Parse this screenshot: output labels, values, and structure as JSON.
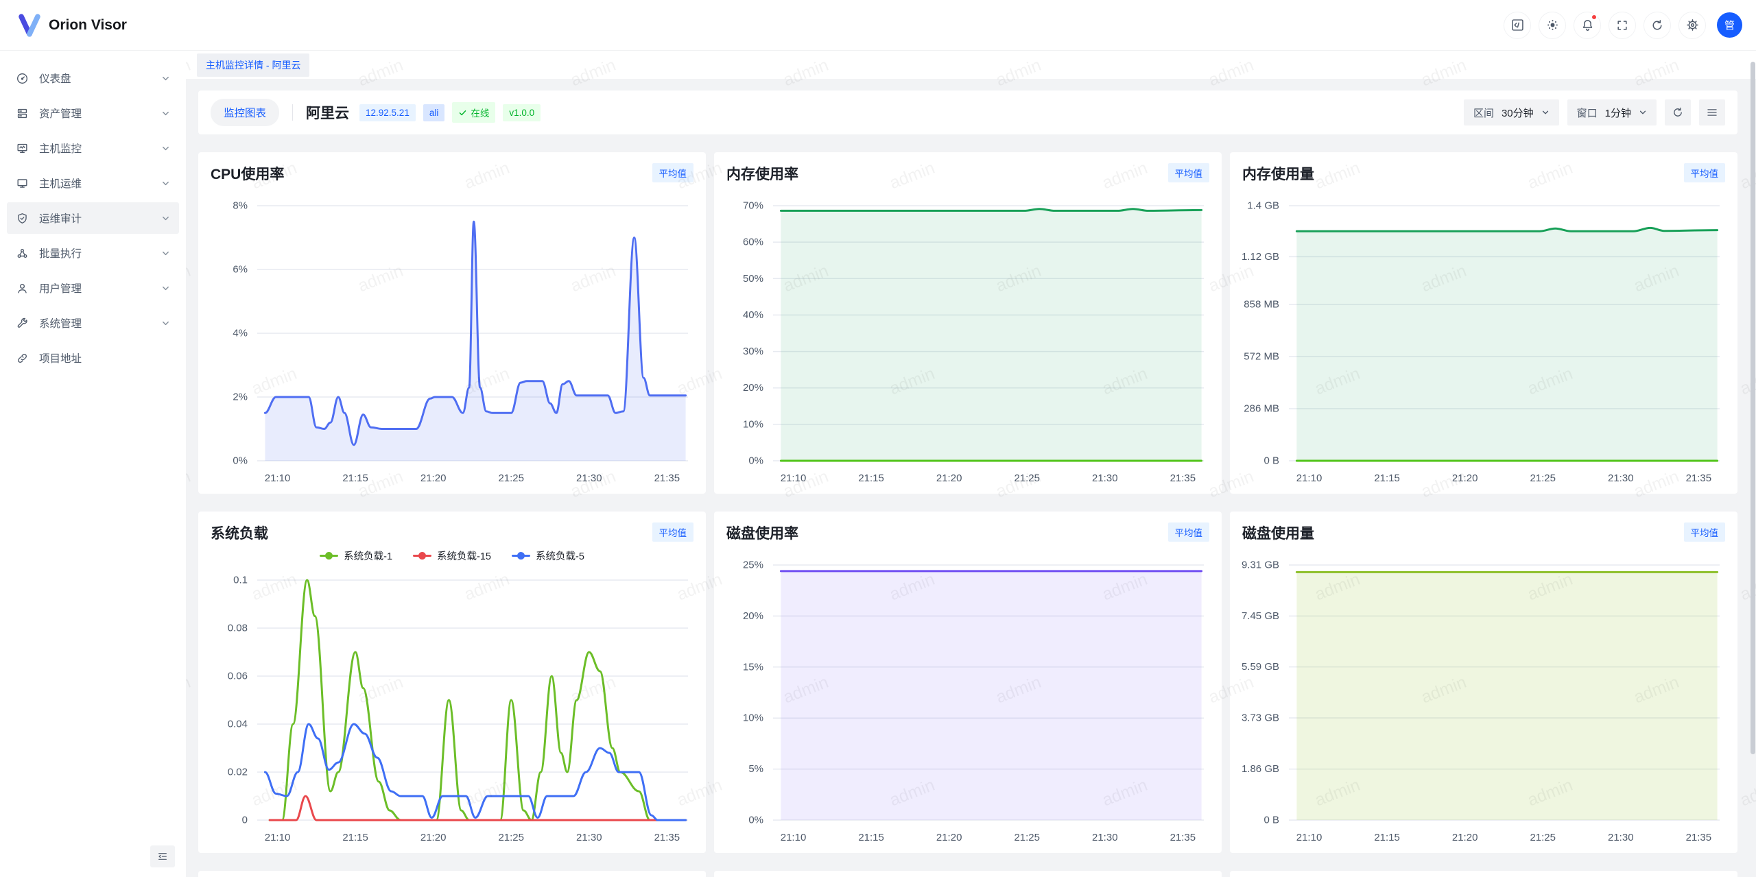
{
  "topbar": {
    "brand": "Orion Visor",
    "avatar": "管",
    "icons": [
      "code-icon",
      "theme-icon",
      "bell-icon",
      "fullscreen-icon",
      "reload-icon",
      "gear-icon"
    ],
    "accent_color": "#165dff",
    "notification_dot_color": "#f53f3f"
  },
  "sidebar": {
    "items": [
      {
        "label": "仪表盘",
        "icon": "dashboard-icon",
        "has_children": true,
        "active": false
      },
      {
        "label": "资产管理",
        "icon": "assets-icon",
        "has_children": true,
        "active": false
      },
      {
        "label": "主机监控",
        "icon": "host-monitor-icon",
        "has_children": true,
        "active": false
      },
      {
        "label": "主机运维",
        "icon": "host-ops-icon",
        "has_children": true,
        "active": false
      },
      {
        "label": "运维审计",
        "icon": "shield-check-icon",
        "has_children": true,
        "active": true
      },
      {
        "label": "批量执行",
        "icon": "batch-icon",
        "has_children": true,
        "active": false
      },
      {
        "label": "用户管理",
        "icon": "user-icon",
        "has_children": true,
        "active": false
      },
      {
        "label": "系统管理",
        "icon": "wrench-icon",
        "has_children": true,
        "active": false
      },
      {
        "label": "项目地址",
        "icon": "link-icon",
        "has_children": false,
        "active": false
      }
    ]
  },
  "tabs": {
    "active": "主机监控详情 - 阿里云"
  },
  "toolbar": {
    "view": "监控图表",
    "host": "阿里云",
    "ip": "12.92.5.21",
    "env": "ali",
    "status": "在线",
    "version": "v1.0.0",
    "range_label": "区间",
    "range_value": "30分钟",
    "window_label": "窗口",
    "window_value": "1分钟"
  },
  "watermark": "admin",
  "chart_data": [
    {
      "id": "cpu-usage",
      "type": "area",
      "title": "CPU使用率",
      "badge": "平均值",
      "x_domain": [
        8.7,
        36.35
      ],
      "x_ticks": [
        {
          "v": 10,
          "label": "21:10"
        },
        {
          "v": 15,
          "label": "21:15"
        },
        {
          "v": 20,
          "label": "21:20"
        },
        {
          "v": 25,
          "label": "21:25"
        },
        {
          "v": 30,
          "label": "21:30"
        },
        {
          "v": 35,
          "label": "21:35"
        }
      ],
      "y_max": 8,
      "y_ticks": [
        {
          "v": 0,
          "label": "0%"
        },
        {
          "v": 2,
          "label": "2%"
        },
        {
          "v": 4,
          "label": "4%"
        },
        {
          "v": 6,
          "label": "6%"
        },
        {
          "v": 8,
          "label": "8%"
        }
      ],
      "series": [
        {
          "color": "#4f6ef2",
          "fill": "rgba(79,110,242,0.13)",
          "points": [
            [
              9.2,
              1.5
            ],
            [
              9.9,
              2
            ],
            [
              12.0,
              2
            ],
            [
              12.5,
              1.05
            ],
            [
              13.0,
              1.0
            ],
            [
              13.4,
              1.2
            ],
            [
              13.9,
              2.0
            ],
            [
              14.3,
              1.5
            ],
            [
              14.9,
              0.5
            ],
            [
              15.5,
              1.45
            ],
            [
              16.0,
              1.05
            ],
            [
              16.7,
              1.0
            ],
            [
              18.9,
              1.0
            ],
            [
              19.8,
              1.95
            ],
            [
              20.1,
              2.0
            ],
            [
              21.2,
              2.0
            ],
            [
              21.9,
              1.5
            ],
            [
              22.3,
              2.3
            ],
            [
              22.6,
              7.5
            ],
            [
              23.0,
              2.3
            ],
            [
              23.4,
              1.55
            ],
            [
              23.8,
              1.5
            ],
            [
              25.0,
              1.5
            ],
            [
              25.6,
              2.45
            ],
            [
              26.0,
              2.5
            ],
            [
              27.0,
              2.5
            ],
            [
              27.5,
              1.8
            ],
            [
              27.9,
              1.5
            ],
            [
              28.3,
              2.4
            ],
            [
              28.7,
              2.5
            ],
            [
              29.2,
              2.05
            ],
            [
              31.2,
              2.05
            ],
            [
              31.7,
              1.5
            ],
            [
              32.2,
              1.55
            ],
            [
              32.9,
              7.0
            ],
            [
              33.5,
              2.6
            ],
            [
              33.9,
              2.05
            ],
            [
              36.2,
              2.05
            ]
          ]
        }
      ]
    },
    {
      "id": "memory-usage-percent",
      "type": "area",
      "title": "内存使用率",
      "badge": "平均值",
      "x_domain": [
        8.7,
        36.35
      ],
      "x_ticks": [
        {
          "v": 10,
          "label": "21:10"
        },
        {
          "v": 15,
          "label": "21:15"
        },
        {
          "v": 20,
          "label": "21:20"
        },
        {
          "v": 25,
          "label": "21:25"
        },
        {
          "v": 30,
          "label": "21:30"
        },
        {
          "v": 35,
          "label": "21:35"
        }
      ],
      "y_max": 70,
      "y_ticks": [
        {
          "v": 0,
          "label": "0%"
        },
        {
          "v": 10,
          "label": "10%"
        },
        {
          "v": 20,
          "label": "20%"
        },
        {
          "v": 30,
          "label": "30%"
        },
        {
          "v": 40,
          "label": "40%"
        },
        {
          "v": 50,
          "label": "50%"
        },
        {
          "v": 60,
          "label": "60%"
        },
        {
          "v": 70,
          "label": "70%"
        }
      ],
      "series": [
        {
          "color": "#18a058",
          "fill": "rgba(24,160,88,0.10)",
          "points": [
            [
              9.2,
              68.6
            ],
            [
              24.8,
              68.6
            ],
            [
              25.8,
              69.1
            ],
            [
              26.8,
              68.6
            ],
            [
              30.8,
              68.6
            ],
            [
              31.8,
              69.1
            ],
            [
              32.8,
              68.6
            ],
            [
              36.2,
              68.8
            ]
          ]
        },
        {
          "color": "#52c41a",
          "points": [
            [
              9.2,
              0
            ],
            [
              36.2,
              0
            ]
          ]
        }
      ]
    },
    {
      "id": "memory-usage-amount",
      "type": "area",
      "title": "内存使用量",
      "badge": "平均值",
      "x_domain": [
        8.7,
        36.35
      ],
      "x_ticks": [
        {
          "v": 10,
          "label": "21:10"
        },
        {
          "v": 15,
          "label": "21:15"
        },
        {
          "v": 20,
          "label": "21:20"
        },
        {
          "v": 25,
          "label": "21:25"
        },
        {
          "v": 30,
          "label": "21:30"
        },
        {
          "v": 35,
          "label": "21:35"
        }
      ],
      "y_max": 1.4,
      "y_ticks": [
        {
          "v": 0,
          "label": "0 B"
        },
        {
          "v": 0.286,
          "label": "286 MB"
        },
        {
          "v": 0.572,
          "label": "572 MB"
        },
        {
          "v": 0.858,
          "label": "858 MB"
        },
        {
          "v": 1.12,
          "label": "1.12 GB"
        },
        {
          "v": 1.4,
          "label": "1.4 GB"
        }
      ],
      "series": [
        {
          "color": "#18a058",
          "fill": "rgba(24,160,88,0.10)",
          "points": [
            [
              9.2,
              1.26
            ],
            [
              24.8,
              1.26
            ],
            [
              25.8,
              1.275
            ],
            [
              26.8,
              1.26
            ],
            [
              30.8,
              1.26
            ],
            [
              31.9,
              1.278
            ],
            [
              32.8,
              1.262
            ],
            [
              36.2,
              1.266
            ]
          ]
        },
        {
          "color": "#52c41a",
          "points": [
            [
              9.2,
              0
            ],
            [
              36.2,
              0
            ]
          ]
        }
      ]
    },
    {
      "id": "system-load",
      "type": "line",
      "title": "系统负载",
      "badge": "平均值",
      "x_domain": [
        8.7,
        36.35
      ],
      "x_ticks": [
        {
          "v": 10,
          "label": "21:10"
        },
        {
          "v": 15,
          "label": "21:15"
        },
        {
          "v": 20,
          "label": "21:20"
        },
        {
          "v": 25,
          "label": "21:25"
        },
        {
          "v": 30,
          "label": "21:30"
        },
        {
          "v": 35,
          "label": "21:35"
        }
      ],
      "y_max": 0.1,
      "y_ticks": [
        {
          "v": 0,
          "label": "0"
        },
        {
          "v": 0.02,
          "label": "0.02"
        },
        {
          "v": 0.04,
          "label": "0.04"
        },
        {
          "v": 0.06,
          "label": "0.06"
        },
        {
          "v": 0.08,
          "label": "0.08"
        },
        {
          "v": 0.1,
          "label": "0.1"
        }
      ],
      "legend": [
        {
          "name": "系统负载-1",
          "color": "#6cbe28"
        },
        {
          "name": "系统负载-15",
          "color": "#e9484c"
        },
        {
          "name": "系统负载-5",
          "color": "#3f6ff5"
        }
      ],
      "series": [
        {
          "name": "系统负载-1",
          "color": "#6cbe28",
          "points": [
            [
              9.5,
              0
            ],
            [
              10.3,
              0
            ],
            [
              11.0,
              0.04
            ],
            [
              11.9,
              0.1
            ],
            [
              12.4,
              0.085
            ],
            [
              13.4,
              0.012
            ],
            [
              13.9,
              0.02
            ],
            [
              15.0,
              0.07
            ],
            [
              15.5,
              0.055
            ],
            [
              16.5,
              0.016
            ],
            [
              17.2,
              0.004
            ],
            [
              17.9,
              0
            ],
            [
              20.2,
              0
            ],
            [
              21.0,
              0.05
            ],
            [
              21.8,
              0.004
            ],
            [
              22.3,
              0
            ],
            [
              24.3,
              0
            ],
            [
              25.0,
              0.05
            ],
            [
              25.8,
              0.004
            ],
            [
              26.3,
              0
            ],
            [
              26.9,
              0.02
            ],
            [
              27.6,
              0.06
            ],
            [
              28.2,
              0.028
            ],
            [
              28.6,
              0.02
            ],
            [
              29.2,
              0.05
            ],
            [
              30.0,
              0.07
            ],
            [
              30.7,
              0.062
            ],
            [
              31.5,
              0.03
            ],
            [
              32.0,
              0.02
            ],
            [
              33.2,
              0.012
            ],
            [
              33.9,
              0
            ],
            [
              36.2,
              0
            ]
          ]
        },
        {
          "name": "系统负载-15",
          "color": "#e9484c",
          "points": [
            [
              9.5,
              0
            ],
            [
              11.2,
              0
            ],
            [
              11.8,
              0.01
            ],
            [
              12.5,
              0
            ],
            [
              36.2,
              0
            ]
          ]
        },
        {
          "name": "系统负载-5",
          "color": "#3f6ff5",
          "points": [
            [
              9.2,
              0.02
            ],
            [
              9.9,
              0.011
            ],
            [
              10.6,
              0.01
            ],
            [
              11.3,
              0.02
            ],
            [
              12.0,
              0.04
            ],
            [
              12.6,
              0.034
            ],
            [
              13.3,
              0.021
            ],
            [
              13.9,
              0.024
            ],
            [
              14.9,
              0.04
            ],
            [
              15.6,
              0.036
            ],
            [
              16.4,
              0.026
            ],
            [
              17.3,
              0.012
            ],
            [
              17.9,
              0.01
            ],
            [
              19.3,
              0.01
            ],
            [
              19.9,
              0.001
            ],
            [
              20.6,
              0.01
            ],
            [
              22.1,
              0.01
            ],
            [
              22.7,
              0.001
            ],
            [
              23.5,
              0.01
            ],
            [
              26.1,
              0.01
            ],
            [
              26.7,
              0.001
            ],
            [
              27.3,
              0.01
            ],
            [
              29.0,
              0.01
            ],
            [
              29.8,
              0.02
            ],
            [
              30.7,
              0.03
            ],
            [
              31.3,
              0.028
            ],
            [
              31.9,
              0.02
            ],
            [
              33.2,
              0.02
            ],
            [
              34.0,
              0.002
            ],
            [
              34.4,
              0
            ],
            [
              36.2,
              0
            ]
          ]
        }
      ]
    },
    {
      "id": "disk-usage-percent",
      "type": "area",
      "title": "磁盘使用率",
      "badge": "平均值",
      "x_domain": [
        8.7,
        36.35
      ],
      "x_ticks": [
        {
          "v": 10,
          "label": "21:10"
        },
        {
          "v": 15,
          "label": "21:15"
        },
        {
          "v": 20,
          "label": "21:20"
        },
        {
          "v": 25,
          "label": "21:25"
        },
        {
          "v": 30,
          "label": "21:30"
        },
        {
          "v": 35,
          "label": "21:35"
        }
      ],
      "y_max": 25,
      "y_ticks": [
        {
          "v": 0,
          "label": "0%"
        },
        {
          "v": 5,
          "label": "5%"
        },
        {
          "v": 10,
          "label": "10%"
        },
        {
          "v": 15,
          "label": "15%"
        },
        {
          "v": 20,
          "label": "20%"
        },
        {
          "v": 25,
          "label": "25%"
        }
      ],
      "series": [
        {
          "color": "#6f4ef2",
          "fill": "rgba(111,78,242,0.10)",
          "points": [
            [
              9.2,
              24.4
            ],
            [
              36.2,
              24.4
            ]
          ]
        }
      ]
    },
    {
      "id": "disk-usage-amount",
      "type": "area",
      "title": "磁盘使用量",
      "badge": "平均值",
      "x_domain": [
        8.7,
        36.35
      ],
      "x_ticks": [
        {
          "v": 10,
          "label": "21:10"
        },
        {
          "v": 15,
          "label": "21:15"
        },
        {
          "v": 20,
          "label": "21:20"
        },
        {
          "v": 25,
          "label": "21:25"
        },
        {
          "v": 30,
          "label": "21:30"
        },
        {
          "v": 35,
          "label": "21:35"
        }
      ],
      "y_max": 9.31,
      "y_ticks": [
        {
          "v": 0,
          "label": "0 B"
        },
        {
          "v": 1.86,
          "label": "1.86 GB"
        },
        {
          "v": 3.73,
          "label": "3.73 GB"
        },
        {
          "v": 5.59,
          "label": "5.59 GB"
        },
        {
          "v": 7.45,
          "label": "7.45 GB"
        },
        {
          "v": 9.31,
          "label": "9.31 GB"
        }
      ],
      "series": [
        {
          "color": "#8cbf26",
          "fill": "rgba(140,191,38,0.14)",
          "points": [
            [
              9.2,
              9.05
            ],
            [
              36.2,
              9.05
            ]
          ]
        }
      ]
    }
  ]
}
